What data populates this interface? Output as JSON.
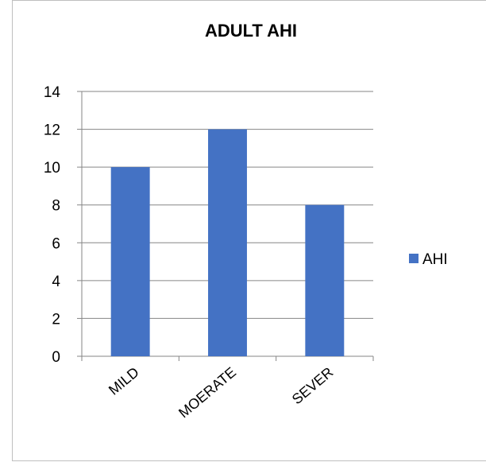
{
  "chart_data": {
    "type": "bar",
    "title": "ADULT AHI",
    "categories": [
      "MILD",
      "MOERATE",
      "SEVER"
    ],
    "series": [
      {
        "name": "AHI",
        "color": "#4472c4",
        "values": [
          10,
          12,
          8
        ]
      }
    ],
    "ylim": [
      0,
      14
    ],
    "yticks": [
      0,
      2,
      4,
      6,
      8,
      10,
      12,
      14
    ],
    "grid": true,
    "legend": "right"
  }
}
